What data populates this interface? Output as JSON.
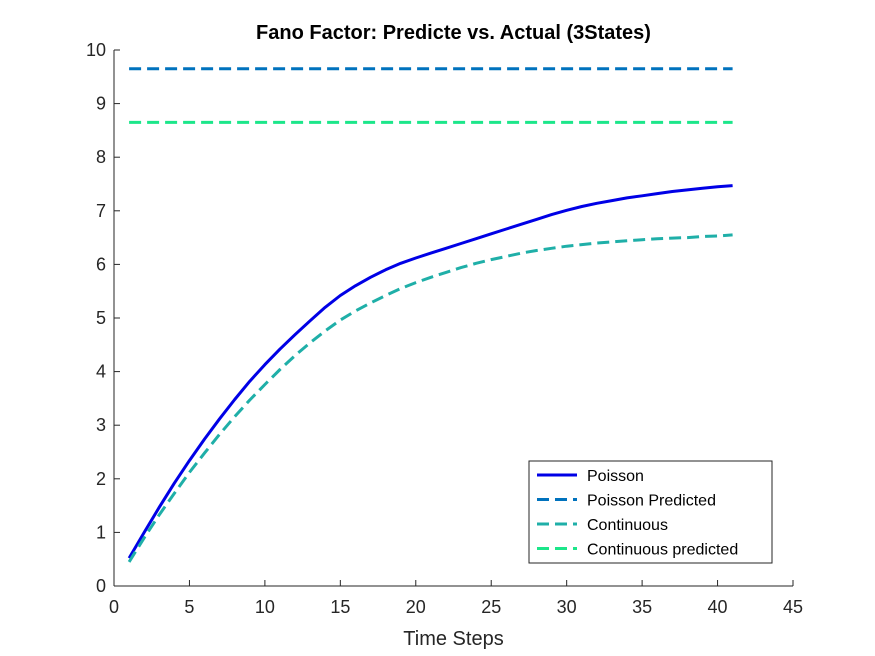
{
  "chart_data": {
    "type": "line",
    "title": "Fano Factor: Predicte vs. Actual (3States)",
    "xlabel": "Time Steps",
    "ylabel": "",
    "xlim": [
      0,
      45
    ],
    "ylim": [
      0,
      10
    ],
    "xticks": [
      0,
      5,
      10,
      15,
      20,
      25,
      30,
      35,
      40,
      45
    ],
    "yticks": [
      0,
      1,
      2,
      3,
      4,
      5,
      6,
      7,
      8,
      9,
      10
    ],
    "grid": false,
    "legend_location": "bottom-right",
    "series": [
      {
        "name": "Poisson",
        "style": "solid",
        "color": "#0000E6",
        "x": [
          1,
          2,
          3,
          4,
          5,
          6,
          7,
          8,
          9,
          10,
          11,
          12,
          13,
          14,
          15,
          16,
          17,
          18,
          19,
          20,
          21,
          22,
          23,
          24,
          25,
          26,
          27,
          28,
          29,
          30,
          31,
          32,
          33,
          34,
          35,
          36,
          37,
          38,
          39,
          40,
          41
        ],
        "y": [
          0.52,
          1.0,
          1.47,
          1.92,
          2.34,
          2.74,
          3.12,
          3.48,
          3.82,
          4.13,
          4.42,
          4.69,
          4.95,
          5.2,
          5.42,
          5.6,
          5.76,
          5.9,
          6.02,
          6.12,
          6.21,
          6.3,
          6.39,
          6.48,
          6.57,
          6.66,
          6.75,
          6.84,
          6.93,
          7.01,
          7.08,
          7.14,
          7.19,
          7.24,
          7.28,
          7.32,
          7.36,
          7.39,
          7.42,
          7.45,
          7.47
        ]
      },
      {
        "name": "Poisson Predicted",
        "style": "dashed",
        "color": "#0072BD",
        "x": [
          1,
          41
        ],
        "y": [
          9.65,
          9.65
        ]
      },
      {
        "name": "Continuous",
        "style": "dashed",
        "color": "#1FAFA8",
        "x": [
          1,
          2,
          3,
          4,
          5,
          6,
          7,
          8,
          9,
          10,
          11,
          12,
          13,
          14,
          15,
          16,
          17,
          18,
          19,
          20,
          21,
          22,
          23,
          24,
          25,
          26,
          27,
          28,
          29,
          30,
          31,
          32,
          33,
          34,
          35,
          36,
          37,
          38,
          39,
          40,
          41
        ],
        "y": [
          0.45,
          0.9,
          1.33,
          1.73,
          2.12,
          2.48,
          2.83,
          3.16,
          3.47,
          3.76,
          4.04,
          4.3,
          4.54,
          4.76,
          4.96,
          5.13,
          5.28,
          5.42,
          5.55,
          5.66,
          5.76,
          5.85,
          5.94,
          6.02,
          6.09,
          6.15,
          6.21,
          6.26,
          6.3,
          6.34,
          6.37,
          6.4,
          6.42,
          6.44,
          6.46,
          6.48,
          6.49,
          6.5,
          6.52,
          6.53,
          6.55
        ]
      },
      {
        "name": "Continuous predicted",
        "style": "dashed",
        "color": "#1CE68A",
        "x": [
          1,
          41
        ],
        "y": [
          8.65,
          8.65
        ]
      }
    ]
  }
}
